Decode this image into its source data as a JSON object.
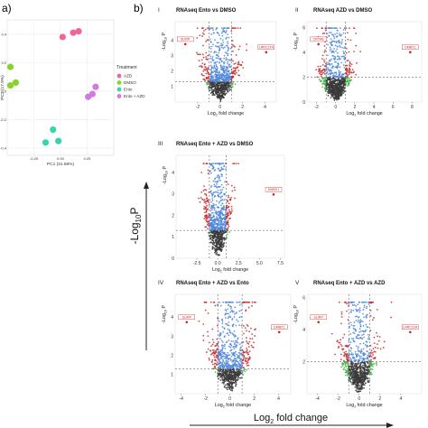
{
  "figure": {
    "panel_a_label": "a)",
    "panel_b_label": "b)",
    "shared_ylabel": "-Log10P",
    "shared_xlabel": "Log2 fold change"
  },
  "colors": {
    "ns": "#3a3a3a",
    "log2fc": "#3cb043",
    "p": "#4f86d9",
    "both": "#c62a2a",
    "AZD": "#f0669a",
    "DMSO": "#86d42c",
    "Ento": "#35d6ad",
    "Ento_AZD": "#d17be0"
  },
  "chart_data": [
    {
      "type": "scatter",
      "panel": "a",
      "xlabel": "PC1 (31.59%)",
      "ylabel": "PC2 (17.9%)",
      "xlim": [
        -0.5,
        0.5
      ],
      "ylim": [
        -0.45,
        0.5
      ],
      "xticks": [
        "-0.25",
        "0.00",
        "0.25"
      ],
      "yticks": [
        "0.4",
        "0.2",
        "0.0",
        "-0.2",
        "-0.4"
      ],
      "legend": {
        "title": "Treatment",
        "position": "right",
        "entries": [
          "AZD",
          "DMSO",
          "Ento",
          "Ento + AZD"
        ]
      },
      "series": [
        {
          "name": "AZD",
          "color_key": "AZD",
          "points": [
            [
              0.02,
              0.38
            ],
            [
              0.12,
              0.41
            ],
            [
              0.17,
              0.42
            ]
          ]
        },
        {
          "name": "DMSO",
          "color_key": "DMSO",
          "points": [
            [
              -0.47,
              0.17
            ],
            [
              -0.42,
              0.06
            ],
            [
              -0.47,
              0.04
            ]
          ]
        },
        {
          "name": "Ento",
          "color_key": "Ento",
          "points": [
            [
              -0.14,
              -0.36
            ],
            [
              -0.07,
              -0.27
            ],
            [
              -0.02,
              -0.35
            ]
          ]
        },
        {
          "name": "Ento + AZD",
          "color_key": "Ento_AZD",
          "points": [
            [
              0.26,
              -0.04
            ],
            [
              0.3,
              -0.02
            ],
            [
              0.33,
              0.03
            ]
          ]
        }
      ]
    },
    {
      "type": "scatter",
      "panel": "b-I",
      "roman": "I",
      "title": "RNAseq Ento vs DMSO",
      "xlabel": "Log2 fold change",
      "ylabel": "-Log10 P",
      "xlim": [
        -4,
        5
      ],
      "ylim": [
        0,
        5.2
      ],
      "xticks": [
        -2,
        0,
        2,
        4
      ],
      "yticks": [
        1,
        2,
        3,
        4
      ],
      "fc_threshold": 1,
      "p_threshold": 1.3,
      "highlighted": [
        "SLIRP",
        "LRRC37A"
      ]
    },
    {
      "type": "scatter",
      "panel": "b-II",
      "roman": "II",
      "title": "RNAseq AZD vs DMSO",
      "xlabel": "Log2 fold change",
      "ylabel": "-Log10 P",
      "xlim": [
        -3,
        9
      ],
      "ylim": [
        0,
        6.5
      ],
      "xticks": [
        -2,
        0,
        2,
        4,
        6,
        8
      ],
      "yticks": [
        0,
        2,
        4,
        6
      ],
      "fc_threshold": 1,
      "p_threshold": 2,
      "highlighted": [
        "CRYAB",
        "DMBX1"
      ]
    },
    {
      "type": "scatter",
      "panel": "b-III",
      "roman": "III",
      "title": "RNAseq Ento + AZD vs DMSO",
      "xlabel": "Log2 fold change",
      "ylabel": "-Log10 P",
      "xlim": [
        -5,
        8
      ],
      "ylim": [
        0,
        4.8
      ],
      "xticks": [
        "-2.5",
        "0.0",
        "2.5",
        "5.0",
        "7.5"
      ],
      "xtick_values": [
        -2.5,
        0,
        2.5,
        5,
        7.5
      ],
      "yticks": [
        0,
        1,
        2,
        3,
        4
      ],
      "fc_threshold": 1,
      "p_threshold": 1.3,
      "highlighted": [
        "DMBX1"
      ]
    },
    {
      "type": "scatter",
      "panel": "b-IV",
      "roman": "IV",
      "title": "RNAseq Ento + AZD vs Ento",
      "xlabel": "Log2 fold change",
      "ylabel": "-Log10 P",
      "xlim": [
        -4.5,
        5
      ],
      "ylim": [
        0,
        5.2
      ],
      "xticks": [
        -4,
        -2,
        0,
        2,
        4
      ],
      "yticks": [
        1,
        2,
        3,
        4
      ],
      "fc_threshold": 1,
      "p_threshold": 1.3,
      "highlighted": [
        "SLIRP",
        "DMBX1"
      ]
    },
    {
      "type": "scatter",
      "panel": "b-V",
      "roman": "V",
      "title": "RNAseq Ento + AZD vs AZD",
      "xlabel": "Log2 fold change",
      "ylabel": "-Log10 P",
      "xlim": [
        -5,
        6
      ],
      "ylim": [
        0,
        6.2
      ],
      "xticks": [
        -4,
        -2,
        0,
        2,
        4
      ],
      "yticks": [
        2,
        4,
        6
      ],
      "fc_threshold": 1,
      "p_threshold": 2,
      "highlighted": [
        "SLIRP",
        "LRRC37A"
      ]
    }
  ]
}
